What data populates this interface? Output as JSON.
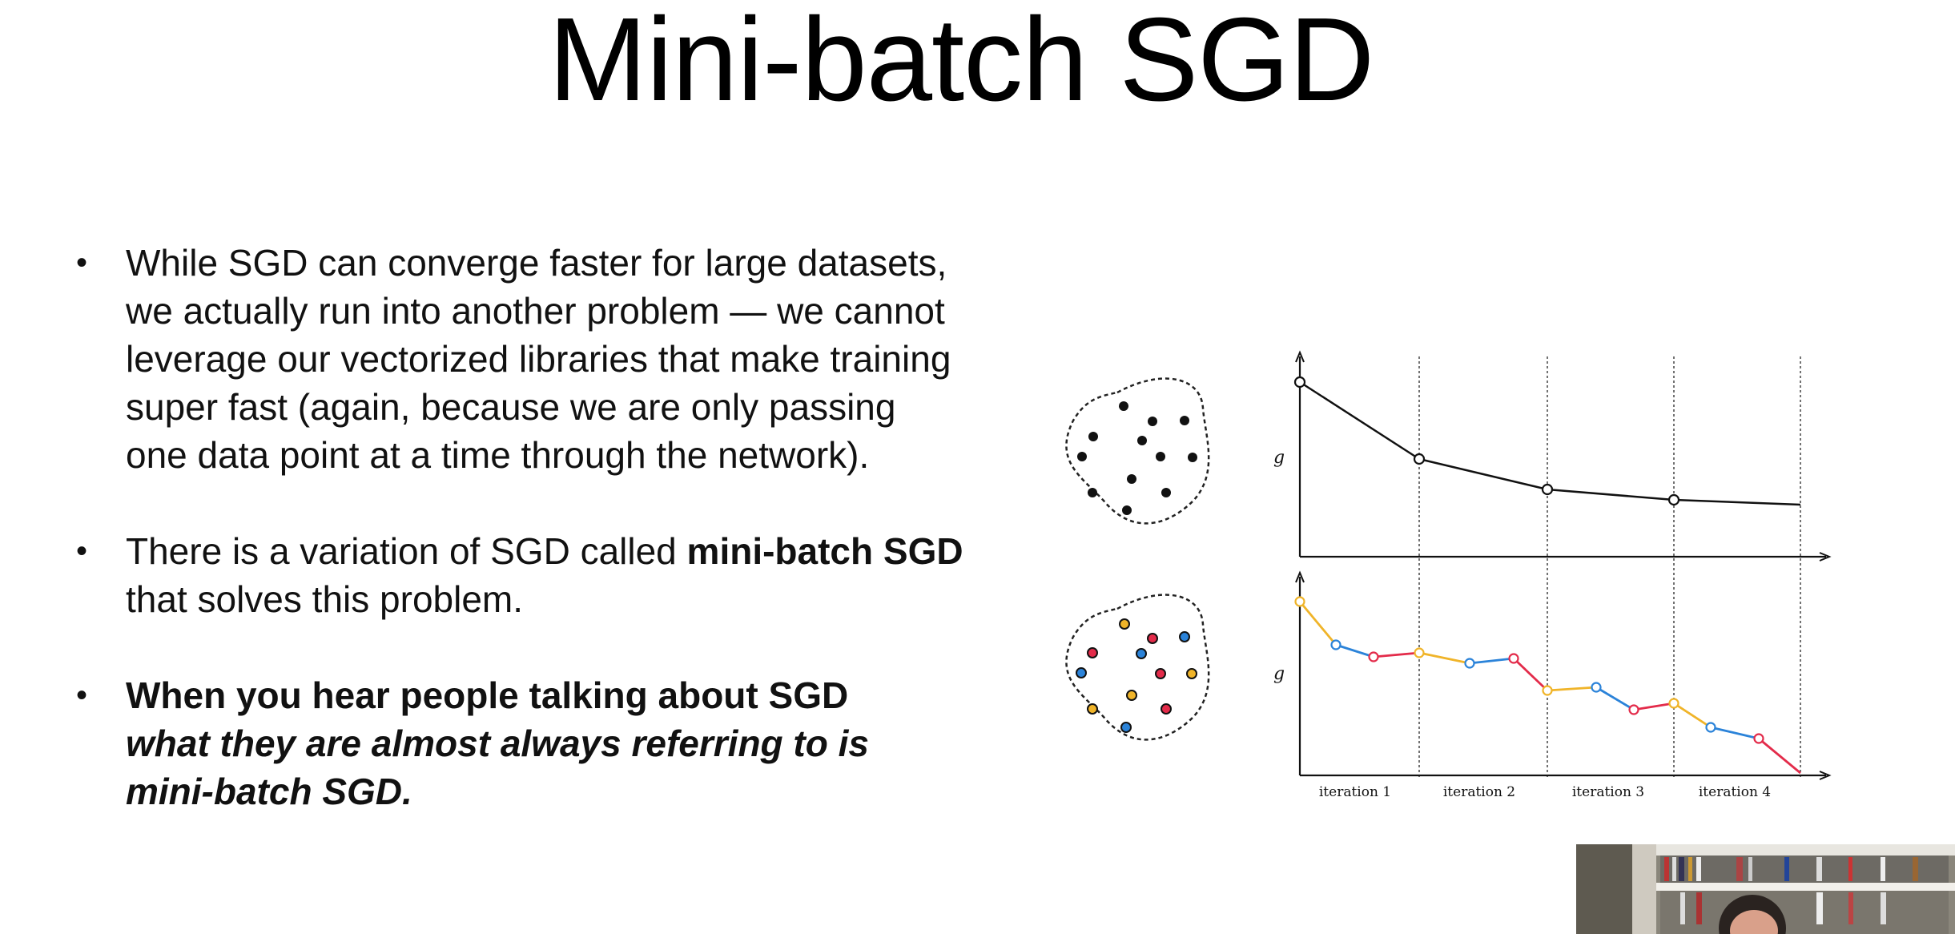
{
  "title": "Mini-batch SGD",
  "bullets": {
    "b1": "While SGD can converge faster for large datasets, we actually run into another problem — we cannot leverage our vectorized libraries that make training super fast (again, because we are only passing one data point at a time through the network).",
    "b2_pre": "There is a variation of SGD called ",
    "b2_bold": "mini-batch SGD",
    "b2_post": " that solves this problem.",
    "b3_line1": "When you hear people talking about SGD",
    "b3_line2": "what they are almost always referring to is mini-batch SGD."
  },
  "figure": {
    "top_plot": {
      "ylabel": "g"
    },
    "bottom_plot": {
      "ylabel": "g",
      "iterations": [
        "iteration 1",
        "iteration 2",
        "iteration 3",
        "iteration 4"
      ]
    }
  },
  "colors": {
    "orange": "#f0b429",
    "blue": "#2b83d9",
    "red": "#e32b4a",
    "black": "#111111"
  },
  "webcam": {
    "icon": "webcam-feed-icon"
  }
}
